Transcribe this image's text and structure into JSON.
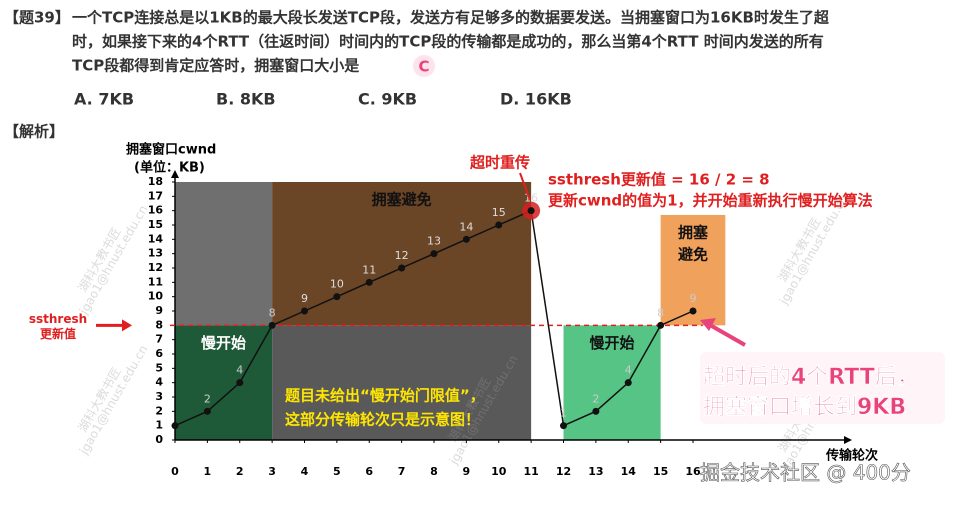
{
  "question": {
    "number": "【题39】",
    "lines": [
      "一个TCP连接总是以1KB的最大段长发送TCP段，发送方有足够多的数据要发送。当拥塞窗口为16KB时发生了超",
      "时，如果接下来的4个RTT（往返时间）时间内的TCP段的传输都是成功的，那么当第4个RTT 时间内发送的所有",
      "TCP段都得到肯定应答时，拥塞窗口大小是"
    ],
    "answer": "C",
    "options": [
      "A. 7KB",
      "B. 8KB",
      "C. 9KB",
      "D. 16KB"
    ]
  },
  "analysis_label": "【解析】",
  "chart_data": {
    "type": "line",
    "ylabel": "拥塞窗口cwnd",
    "ylabel_unit": "(单位：KB)",
    "xlabel": "传输轮次",
    "x": [
      0,
      1,
      2,
      3,
      4,
      5,
      6,
      7,
      8,
      9,
      10,
      11,
      12,
      13,
      14,
      15,
      16
    ],
    "series": [
      {
        "name": "cwnd",
        "color": "#111111",
        "values": [
          1,
          2,
          4,
          8,
          9,
          10,
          11,
          12,
          13,
          14,
          15,
          16,
          1,
          2,
          4,
          8,
          9
        ]
      }
    ],
    "xlim": [
      0,
      20
    ],
    "ylim": [
      0,
      18
    ],
    "xticks": [
      0,
      1,
      2,
      3,
      4,
      5,
      6,
      7,
      8,
      9,
      10,
      11,
      12,
      13,
      14,
      15,
      16
    ],
    "yticks": [
      0,
      1,
      2,
      3,
      4,
      5,
      6,
      7,
      8,
      9,
      10,
      11,
      12,
      13,
      14,
      15,
      16,
      17,
      18
    ],
    "regions": [
      {
        "x": [
          0,
          3
        ],
        "y": [
          8,
          18
        ],
        "color": "#6f6f6f"
      },
      {
        "x": [
          0,
          3
        ],
        "y": [
          0,
          8
        ],
        "color": "#1e5a38",
        "label": [
          "慢开始"
        ]
      },
      {
        "x": [
          3,
          11
        ],
        "y": [
          8,
          18
        ],
        "color": "#6a4526",
        "label": [
          "拥塞避免"
        ]
      },
      {
        "x": [
          3,
          11
        ],
        "y": [
          0,
          8
        ],
        "color": "#595959"
      },
      {
        "x": [
          12,
          15
        ],
        "y": [
          0,
          8
        ],
        "color": "#55c485",
        "label": [
          "慢开始"
        ]
      },
      {
        "x": [
          15,
          17
        ],
        "y": [
          8,
          15.7
        ],
        "color": "#f0a15c",
        "label": [
          "拥塞",
          "避免"
        ]
      }
    ],
    "threshold": {
      "value": 8,
      "label": "ssthresh",
      "sublabel": "更新值",
      "color": "#e02020"
    },
    "note": [
      "题目未给出“慢开始门限值”，",
      "这部分传输轮次只是示意图！"
    ],
    "timeout_label": "超时重传",
    "timeout_notes": [
      "ssthresh更新值 = 16 / 2 = 8",
      "更新cwnd的值为1，并开始重新执行慢开始算法"
    ],
    "callout": [
      "超时后的4个RTT后，",
      "拥塞窗口增长到9KB"
    ],
    "watermarks": [
      "湖科大教书匠",
      "jgao1@hnust.edu.cn"
    ]
  },
  "footer": "掘金技术社区 @ 400分"
}
